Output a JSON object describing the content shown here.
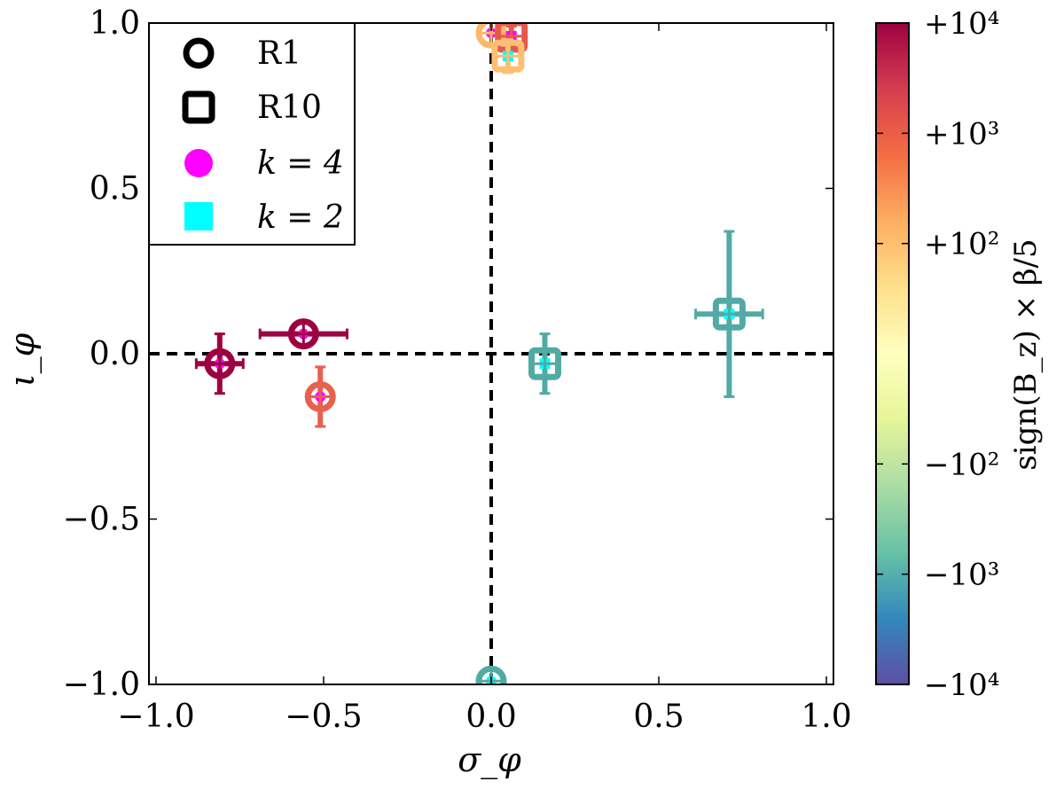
{
  "chart_data": {
    "type": "scatter",
    "xlabel": "σ_φ",
    "ylabel": "ι_φ",
    "xlim": [
      -1.0,
      1.0
    ],
    "ylim": [
      -1.0,
      1.0
    ],
    "x_ticks": [
      -1.0,
      -0.5,
      0.0,
      0.5,
      1.0
    ],
    "x_tick_labels": [
      "−1.0",
      "−0.5",
      "0.0",
      "0.5",
      "1.0"
    ],
    "y_ticks": [
      -1.0,
      -0.5,
      0.0,
      0.5,
      1.0
    ],
    "y_tick_labels": [
      "−1.0",
      "−0.5",
      "0.0",
      "0.5",
      "1.0"
    ],
    "reference_lines": [
      {
        "orientation": "horizontal",
        "value": 0.0,
        "style": "dashed"
      },
      {
        "orientation": "vertical",
        "value": 0.0,
        "style": "dashed",
        "from": -1.0,
        "to": 1.0
      }
    ],
    "legend": {
      "position": "top-left",
      "entries": [
        {
          "marker": "circle",
          "label": "R1",
          "style": "hollow-black"
        },
        {
          "marker": "square",
          "label": "R10",
          "style": "hollow-black"
        },
        {
          "marker": "circle",
          "label": "k = 4",
          "style": "filled",
          "color": "#ff00ff"
        },
        {
          "marker": "square",
          "label": "k = 2",
          "style": "filled",
          "color": "#00ffff"
        }
      ]
    },
    "points": [
      {
        "run": "R1",
        "k": 4,
        "marker": "circle",
        "x": -0.81,
        "y": -0.03,
        "xerr": 0.07,
        "yerr": 0.09,
        "color": "#9e0142"
      },
      {
        "run": "R1",
        "k": 4,
        "marker": "circle",
        "x": -0.56,
        "y": 0.06,
        "xerr": 0.13,
        "yerr": 0.0,
        "color": "#9e0142"
      },
      {
        "run": "R1",
        "k": 4,
        "marker": "circle",
        "x": -0.51,
        "y": -0.13,
        "xerr": 0.0,
        "yerr": 0.09,
        "color": "#e8604e"
      },
      {
        "run": "R1",
        "k": 4,
        "marker": "circle",
        "x": 0.0,
        "y": 0.97,
        "xerr": 0.0,
        "yerr": 0.0,
        "color": "#fdb868"
      },
      {
        "run": "R10",
        "k": 4,
        "marker": "square",
        "x": 0.06,
        "y": 0.96,
        "xerr": 0.0,
        "yerr": 0.03,
        "color": "#e45a49"
      },
      {
        "run": "R10",
        "k": 2,
        "marker": "square",
        "x": 0.05,
        "y": 0.9,
        "xerr": 0.0,
        "yerr": 0.05,
        "color": "#fdbf71"
      },
      {
        "run": "R10",
        "k": 2,
        "marker": "square",
        "x": 0.16,
        "y": -0.03,
        "xerr": 0.0,
        "yerr": 0.09,
        "color": "#52aaa4"
      },
      {
        "run": "R10",
        "k": 2,
        "marker": "square",
        "x": 0.71,
        "y": 0.12,
        "xerr": 0.1,
        "yerr": 0.25,
        "color": "#52aaa4"
      },
      {
        "run": "R1",
        "k": 2,
        "marker": "circle",
        "x": 0.0,
        "y": -0.99,
        "xerr": 0.0,
        "yerr": 0.0,
        "color": "#52aaa4"
      }
    ],
    "colorbar": {
      "label": "sign(B_z) × β/5",
      "colormap": "Spectral",
      "scale": "symmetric-log",
      "range": [
        -10000,
        10000
      ],
      "tick_labels": [
        "+10⁴",
        "+10³",
        "+10²",
        "−10²",
        "−10³",
        "−10⁴"
      ],
      "tick_values": [
        10000,
        1000,
        100,
        -100,
        -1000,
        -10000
      ],
      "colors": [
        "#9e0142",
        "#d53e4f",
        "#f46d43",
        "#fdae61",
        "#fee08b",
        "#ffffbf",
        "#e6f598",
        "#abdda4",
        "#66c2a5",
        "#3288bd",
        "#5e4fa2"
      ]
    }
  }
}
